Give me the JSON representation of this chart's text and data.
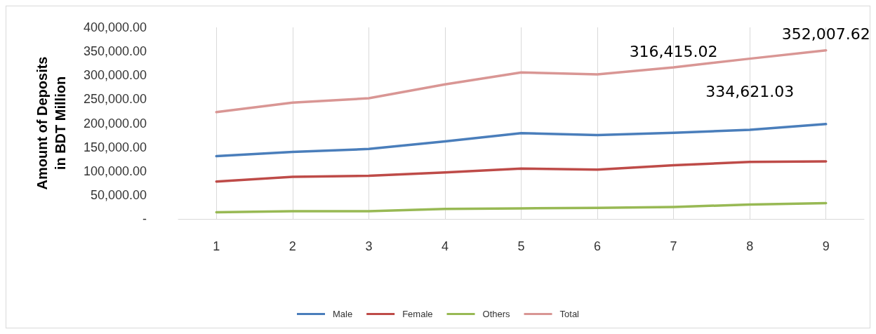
{
  "chart_data": {
    "type": "line",
    "ylabel": "Amount of Deposits\nin BDT Million",
    "categories": [
      "1",
      "2",
      "3",
      "4",
      "5",
      "6",
      "7",
      "8",
      "9"
    ],
    "series": [
      {
        "name": "Male",
        "color": "#4a7ebb",
        "values": [
          131000,
          140000,
          146000,
          162000,
          179000,
          175000,
          180000,
          186000,
          198000
        ]
      },
      {
        "name": "Female",
        "color": "#be4b48",
        "values": [
          78000,
          88000,
          90000,
          97000,
          105000,
          103000,
          112000,
          119000,
          120000
        ]
      },
      {
        "name": "Others",
        "color": "#98b954",
        "values": [
          14000,
          16000,
          16000,
          21000,
          22000,
          23000,
          25000,
          30000,
          33000
        ]
      },
      {
        "name": "Total",
        "color": "#d99694",
        "values": [
          223000,
          243000,
          252000,
          281000,
          306000,
          302000,
          316415.02,
          334621.03,
          352007.62
        ],
        "value_labels": [
          null,
          null,
          null,
          null,
          null,
          null,
          "316,415.02",
          "334,621.03",
          "352,007.62"
        ]
      }
    ],
    "ylim": [
      0,
      400000
    ],
    "yticks": [
      {
        "value": 0,
        "label": "-"
      },
      {
        "value": 50000,
        "label": "50,000.00"
      },
      {
        "value": 100000,
        "label": "100,000.00"
      },
      {
        "value": 150000,
        "label": "150,000.00"
      },
      {
        "value": 200000,
        "label": "200,000.00"
      },
      {
        "value": 250000,
        "label": "250,000.00"
      },
      {
        "value": 300000,
        "label": "300,000.00"
      },
      {
        "value": 350000,
        "label": "350,000.00"
      },
      {
        "value": 400000,
        "label": "400,000.00"
      }
    ],
    "grid": "x",
    "legend": "bottom",
    "marker": "none",
    "line_style": "solid"
  }
}
